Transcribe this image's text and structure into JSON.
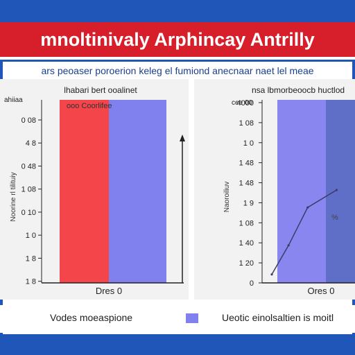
{
  "header": {
    "title": "mnoltinivaly  Arphincay Antrilly",
    "subtitle": "ars peoaser poroerion keleg el fumiond anecnaar naet lel meae"
  },
  "legend": {
    "left_label": "Vodes moeaspione",
    "right_label": "Ueotic einolsaltien is moitl"
  },
  "chart_data": [
    {
      "type": "bar",
      "title": "lhabari bert ooalinet",
      "ylabel": "Noorine rl tilituiy",
      "y_axis_top_label": "ahiiaa",
      "annotation": "ooo Coorlifee",
      "categories": [
        "Dres 0"
      ],
      "tick_labels": [
        "0 08",
        "4 8",
        "0 48",
        "1 08",
        "0 10",
        "1 0",
        "1 8",
        "1 8"
      ],
      "series": [
        {
          "color": "#f4454a",
          "values": [
            1.0
          ]
        },
        {
          "color": "#8080ee",
          "values": [
            1.0
          ]
        }
      ],
      "ylim": [
        0,
        1
      ],
      "grid": false,
      "legend": "bottom"
    },
    {
      "type": "line",
      "title": "nsa lbmorbeoocb huctlod",
      "ylabel": "Naoroiliuv",
      "y_axis_top_label": "cee 00",
      "annotation": "%",
      "categories": [
        "Ores 0"
      ],
      "tick_labels": [
        "4000",
        "1 08",
        "1 0",
        "1 48",
        "1 48",
        "1 9",
        "1 08",
        "1 40",
        "1 20",
        "0"
      ],
      "points": [
        {
          "x": 0.0,
          "y": 0.02
        },
        {
          "x": 0.22,
          "y": 0.22
        },
        {
          "x": 0.47,
          "y": 0.48
        },
        {
          "x": 0.85,
          "y": 0.6
        }
      ],
      "xlim": [
        0,
        1
      ],
      "ylim": [
        0,
        1
      ],
      "band_colors": [
        "#8a86f0",
        "#5f6fc8"
      ],
      "line_color": "#3b3b6a",
      "grid": false,
      "legend": "bottom"
    }
  ]
}
